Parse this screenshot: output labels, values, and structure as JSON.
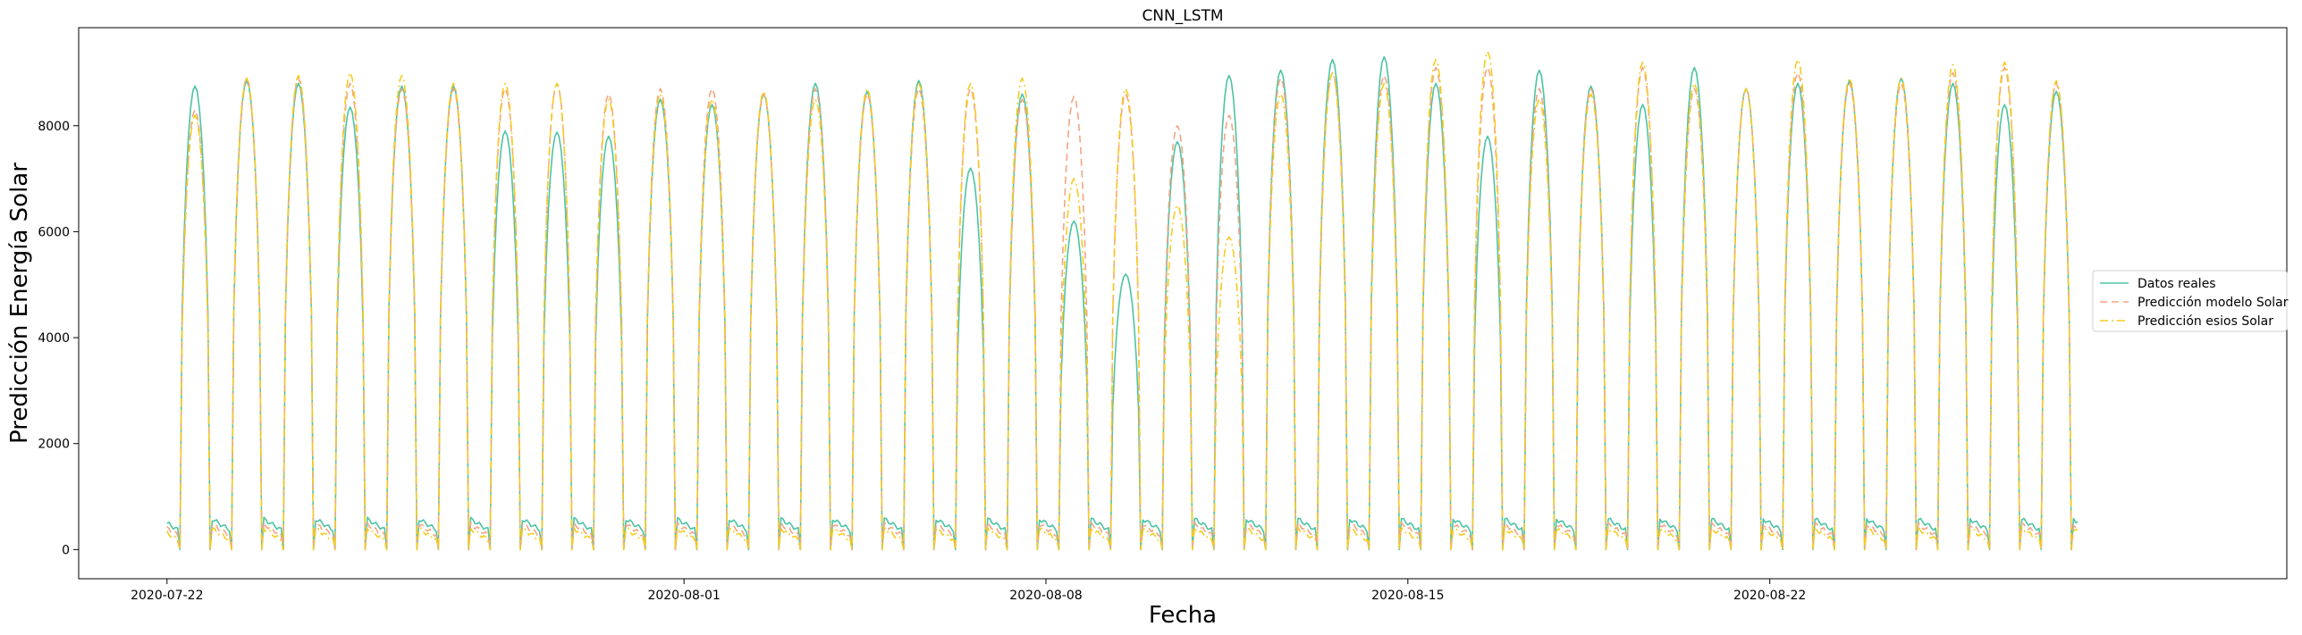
{
  "chart_data": {
    "type": "line",
    "title": "CNN_LSTM",
    "xlabel": "Fecha",
    "ylabel": "Predicción Energía Solar",
    "x_start": "2020-07-22 00:00",
    "x_end": "2020-08-27 23:00",
    "xlim": [
      "2020-07-20 07:00",
      "2020-09-01 00:00"
    ],
    "ylim": [
      -550,
      9850
    ],
    "xticks": [
      "2020-07-22",
      "2020-08-01",
      "2020-08-08",
      "2020-08-15",
      "2020-08-22"
    ],
    "yticks": [
      0,
      2000,
      4000,
      6000,
      8000
    ],
    "grid": false,
    "legend_position": "right",
    "series": [
      {
        "name": "Datos reales",
        "color": "#4cc4a4",
        "style": "solid",
        "daily_peaks": [
          8750,
          8850,
          8800,
          8350,
          8750,
          8750,
          7900,
          7880,
          7800,
          8500,
          8400,
          8600,
          8800,
          8650,
          8850,
          7200,
          8600,
          6200,
          5200,
          7700,
          8950,
          9050,
          9250,
          9300,
          8800,
          7800,
          9050,
          8750,
          8400,
          9100,
          8700,
          8800,
          8850,
          8900,
          8800,
          8400,
          8650,
          8650
        ]
      },
      {
        "name": "Predicción modelo Solar",
        "color": "#f4a582",
        "style": "dashed",
        "daily_peaks": [
          8300,
          8900,
          8900,
          8800,
          8700,
          8700,
          8700,
          8800,
          8600,
          8700,
          8700,
          8600,
          8700,
          8600,
          8700,
          8700,
          8500,
          8550,
          8600,
          8000,
          8200,
          8900,
          9000,
          8950,
          9100,
          9100,
          8700,
          8700,
          9100,
          8700,
          8700,
          9000,
          8800,
          8800,
          9000,
          9100,
          8800,
          8600
        ]
      },
      {
        "name": "Predicción esios Solar",
        "color": "#f5cc22",
        "style": "dashdot",
        "daily_peaks": [
          8200,
          8900,
          8950,
          9000,
          8950,
          8800,
          8800,
          8800,
          8500,
          8600,
          8500,
          8650,
          8500,
          8700,
          8800,
          8800,
          8900,
          7000,
          8700,
          6500,
          5900,
          8600,
          9000,
          8800,
          9250,
          9400,
          8500,
          8600,
          9200,
          8800,
          8700,
          9250,
          8900,
          8900,
          9150,
          9200,
          8850,
          8800
        ]
      }
    ]
  }
}
